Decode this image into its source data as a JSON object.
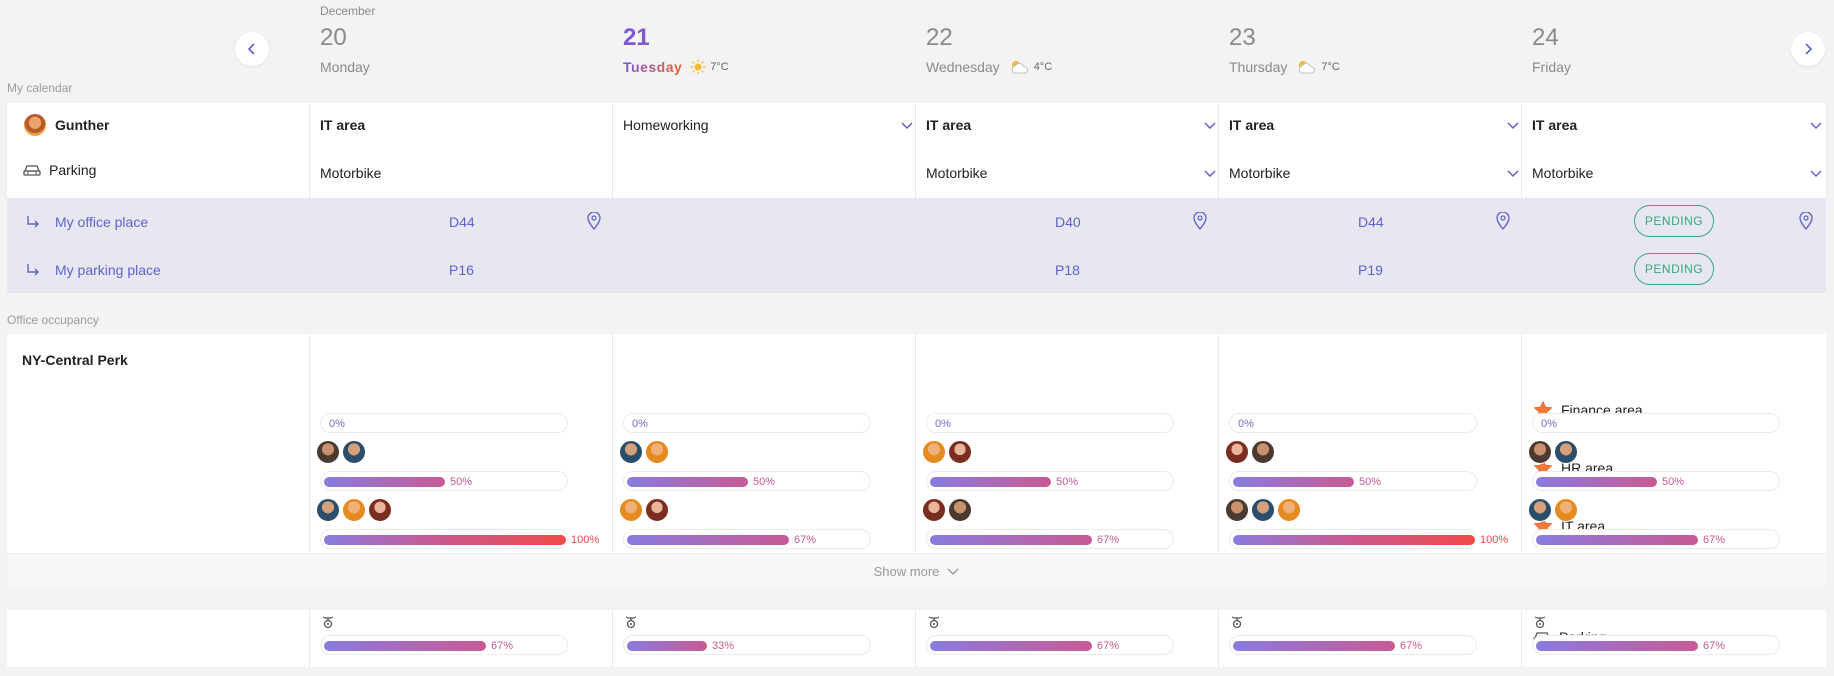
{
  "header": {
    "month": "December",
    "days": [
      {
        "num": "20",
        "name": "Monday",
        "today": false,
        "temp": ""
      },
      {
        "num": "21",
        "name": "Tuesday",
        "today": true,
        "temp": "7°C",
        "weather": "sunny-icon"
      },
      {
        "num": "22",
        "name": "Wednesday",
        "today": false,
        "temp": "4°C",
        "weather": "partly-cloudy-icon"
      },
      {
        "num": "23",
        "name": "Thursday",
        "today": false,
        "temp": "7°C",
        "weather": "partly-cloudy-icon"
      },
      {
        "num": "24",
        "name": "Friday",
        "today": false,
        "temp": ""
      }
    ]
  },
  "my_calendar": {
    "label": "My calendar",
    "user": "Gunther",
    "parking_label": "Parking",
    "areas": [
      "IT area",
      "Homeworking",
      "IT area",
      "IT area",
      "IT area"
    ],
    "areas_bold": [
      true,
      false,
      true,
      true,
      true
    ],
    "parking": [
      "Motorbike",
      "",
      "Motorbike",
      "Motorbike",
      "Motorbike"
    ],
    "office_place_label": "My office place",
    "parking_place_label": "My parking place",
    "office_places": [
      "D44",
      "",
      "D40",
      "D44",
      "PENDING"
    ],
    "parking_places": [
      "P16",
      "",
      "P18",
      "P19",
      "PENDING"
    ]
  },
  "occupancy": {
    "label": "Office occupancy",
    "site": "NY-Central Perk",
    "areas": [
      {
        "name": "Finance area",
        "values": [
          0,
          0,
          0,
          0,
          0
        ],
        "labels": [
          "0%",
          "0%",
          "0%",
          "0%",
          "0%"
        ],
        "people": [
          0,
          0,
          0,
          0,
          0
        ]
      },
      {
        "name": "HR area",
        "values": [
          50,
          50,
          50,
          50,
          50
        ],
        "labels": [
          "50%",
          "50%",
          "50%",
          "50%",
          "50%"
        ],
        "people": [
          2,
          2,
          2,
          2,
          2
        ]
      },
      {
        "name": "IT area",
        "values": [
          100,
          67,
          67,
          100,
          67
        ],
        "labels": [
          "100%",
          "67%",
          "67%",
          "100%",
          "67%"
        ],
        "people": [
          3,
          2,
          2,
          3,
          2
        ]
      }
    ],
    "show_more": "Show more"
  },
  "parking_occupancy": {
    "label": "Parking",
    "values": [
      67,
      33,
      67,
      67,
      67
    ],
    "labels": [
      "67%",
      "33%",
      "67%",
      "67%",
      "67%"
    ]
  },
  "colors": {
    "accent": "#5e63c9",
    "pending": "#3aa57f",
    "bar_start": "#8a7be0",
    "bar_mid": "#c85a94",
    "bar_full": "#f04a4a"
  }
}
